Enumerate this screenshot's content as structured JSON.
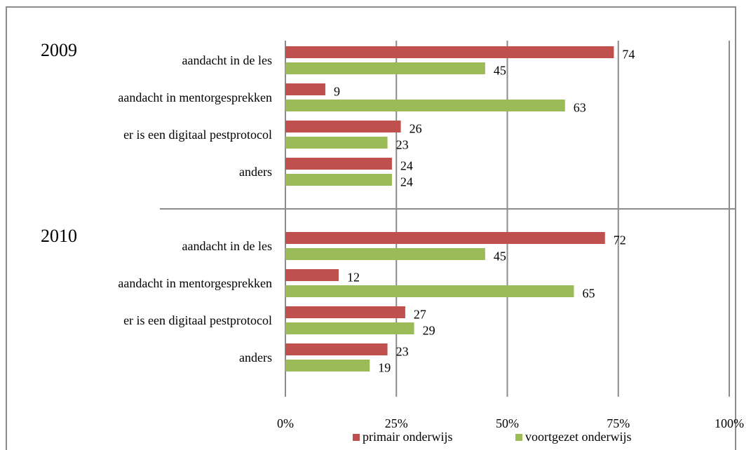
{
  "chart_data": {
    "type": "bar",
    "orientation": "horizontal",
    "groups": [
      {
        "label": "2009",
        "categories": [
          "aandacht in de les",
          "aandacht in mentorgesprekken",
          "er is een digitaal pestprotocol",
          "anders"
        ]
      },
      {
        "label": "2010",
        "categories": [
          "aandacht in de les",
          "aandacht in mentorgesprekken",
          "er is een digitaal pestprotocol",
          "anders"
        ]
      }
    ],
    "series": [
      {
        "name": "primair onderwijs",
        "color": "#c0504d",
        "values": [
          74,
          9,
          26,
          24,
          72,
          12,
          27,
          23
        ]
      },
      {
        "name": "voortgezet onderwijs",
        "color": "#9bbb59",
        "values": [
          45,
          63,
          23,
          24,
          45,
          65,
          29,
          19
        ]
      }
    ],
    "xlim": [
      0,
      100
    ],
    "xticks": [
      {
        "value": 0,
        "label": "0%"
      },
      {
        "value": 25,
        "label": "25%"
      },
      {
        "value": 50,
        "label": "50%"
      },
      {
        "value": 75,
        "label": "75%"
      },
      {
        "value": 100,
        "label": "100%"
      }
    ],
    "grid": true,
    "legend": "bottom"
  }
}
